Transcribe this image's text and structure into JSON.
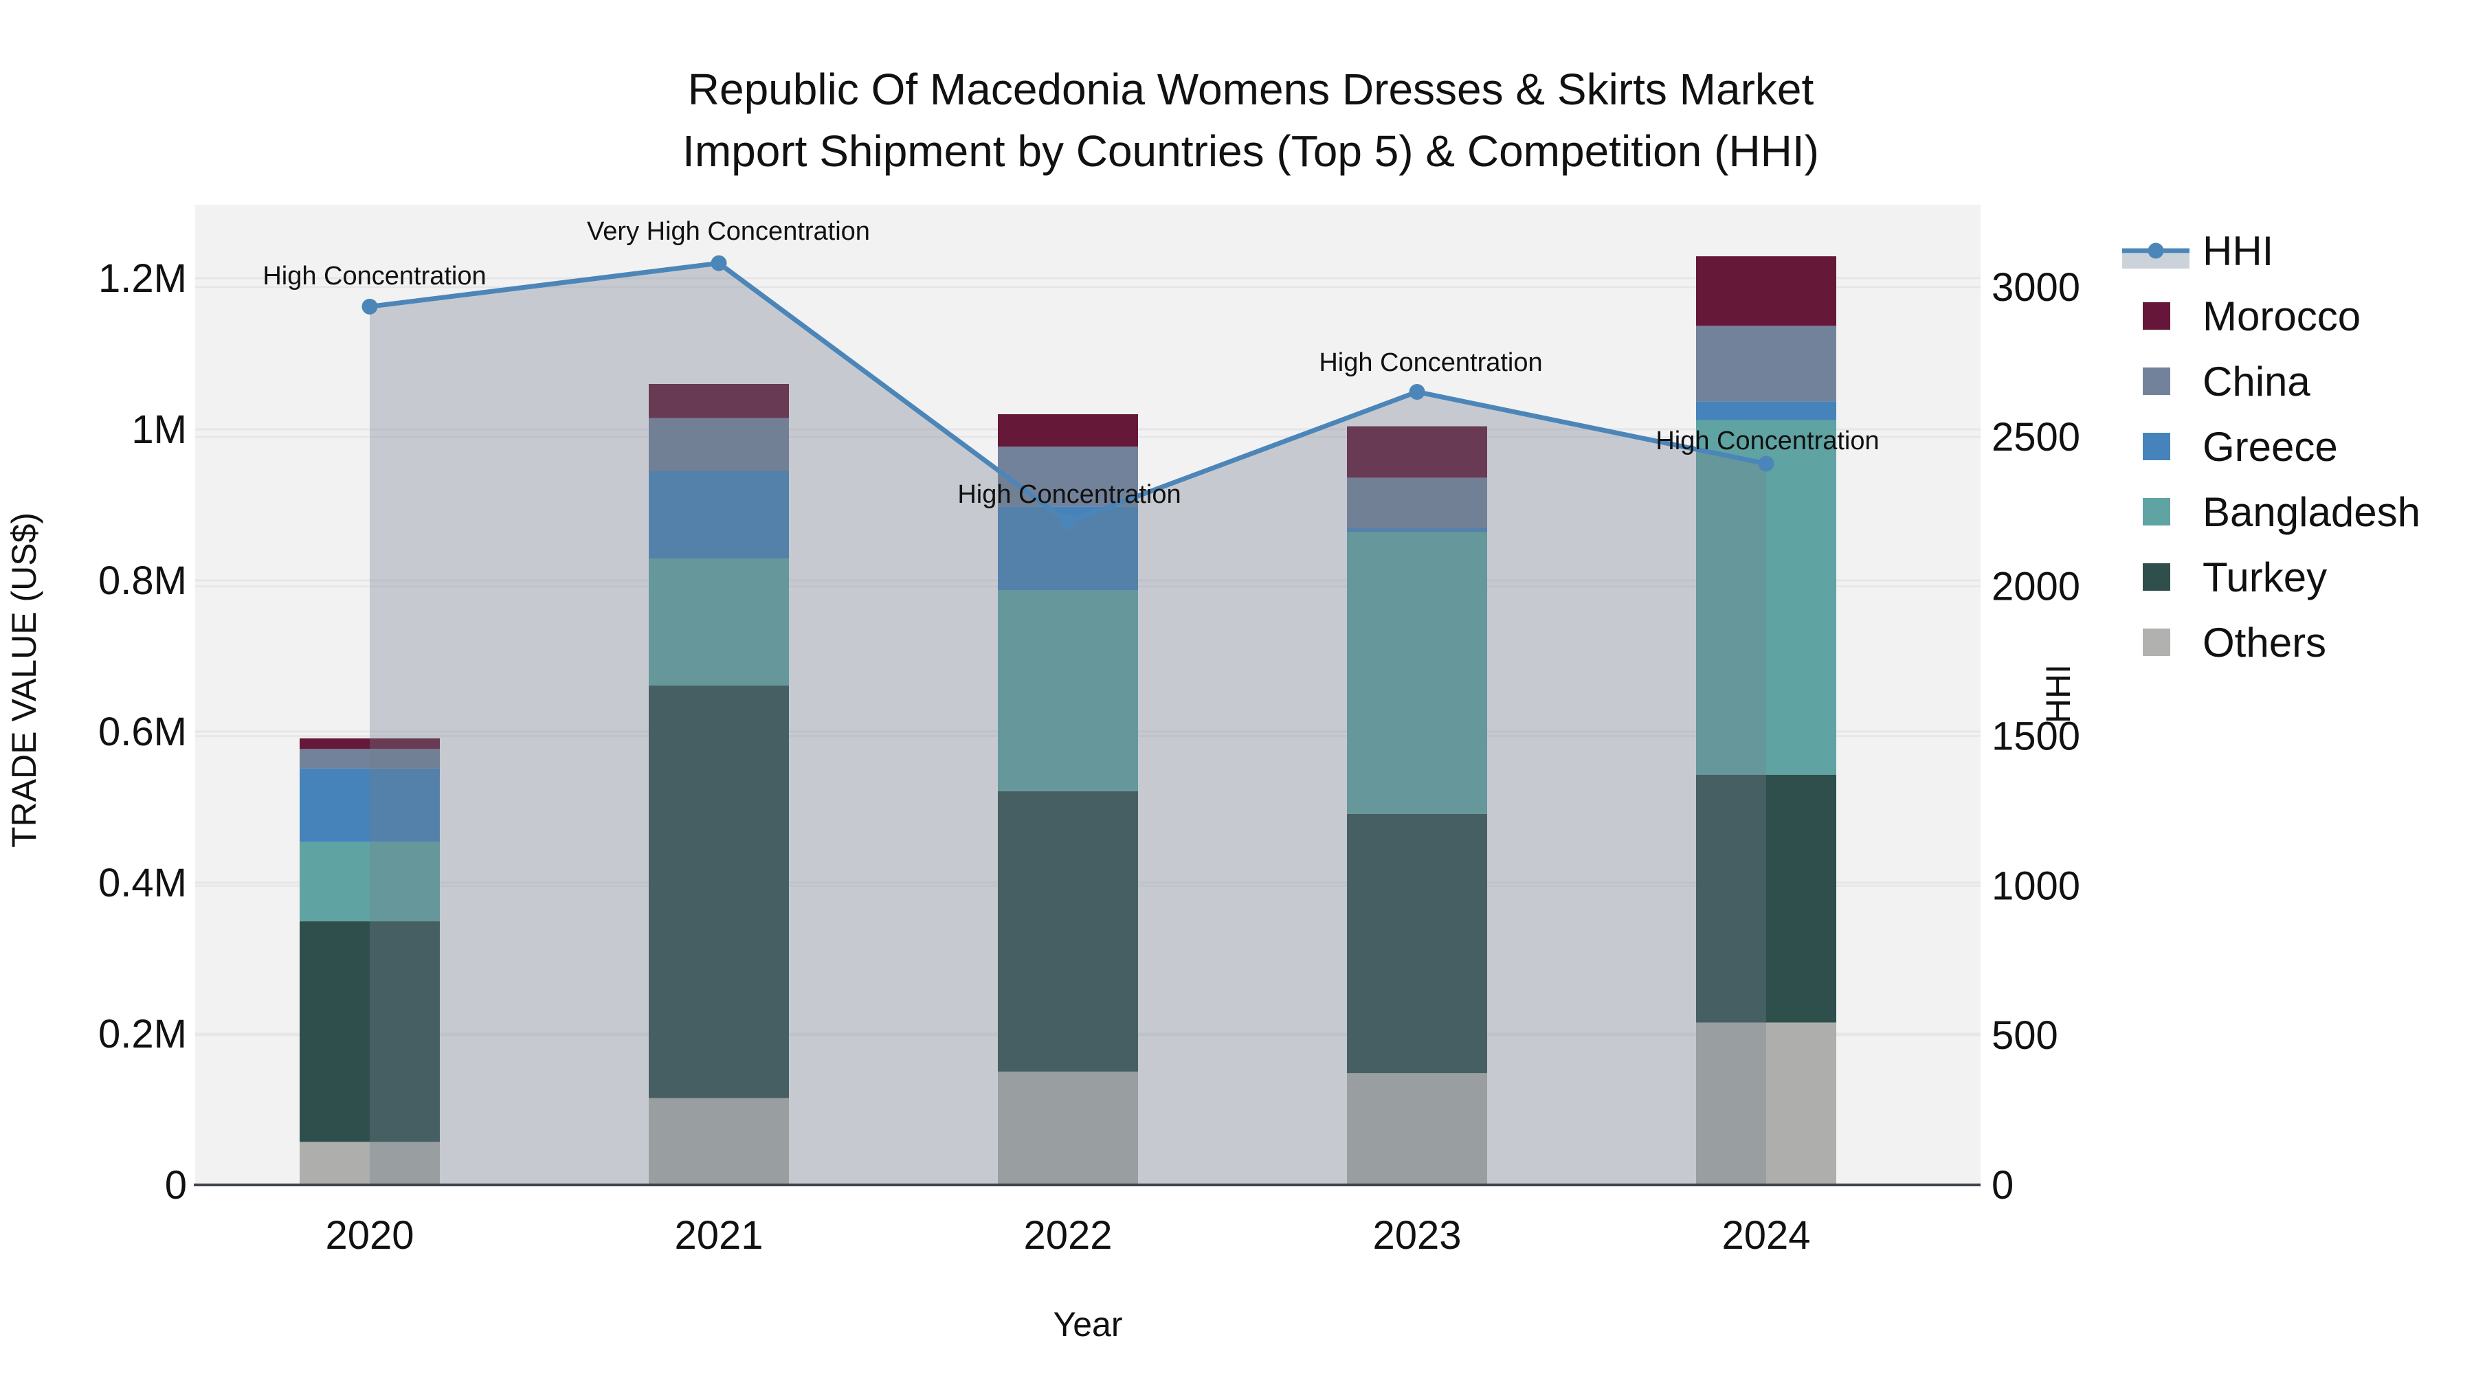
{
  "title": {
    "line1": "Republic Of Macedonia Womens Dresses & Skirts Market",
    "line2": "Import Shipment by Countries (Top 5) & Competition (HHI)"
  },
  "axes": {
    "x": {
      "title": "Year"
    },
    "y_left": {
      "title": "TRADE VALUE (US$)",
      "tick_labels": [
        "0",
        "0.2M",
        "0.4M",
        "0.6M",
        "0.8M",
        "1M",
        "1.2M"
      ],
      "tick_values": [
        0,
        200000,
        400000,
        600000,
        800000,
        1000000,
        1200000
      ],
      "range": [
        0,
        1200000
      ]
    },
    "y_right": {
      "title": "HHI",
      "tick_labels": [
        "0",
        "500",
        "1000",
        "1500",
        "2000",
        "2500",
        "3000"
      ],
      "tick_values": [
        0,
        500,
        1000,
        1500,
        2000,
        2500,
        3000
      ],
      "range": [
        0,
        3000
      ]
    }
  },
  "legend": {
    "items": [
      {
        "label": "HHI",
        "type": "line",
        "color": "#4c86b8"
      },
      {
        "label": "Morocco",
        "type": "swatch",
        "color": "#661739"
      },
      {
        "label": "China",
        "type": "swatch",
        "color": "#72829a"
      },
      {
        "label": "Greece",
        "type": "swatch",
        "color": "#4583ba"
      },
      {
        "label": "Bangladesh",
        "type": "swatch",
        "color": "#5fa4a3"
      },
      {
        "label": "Turkey",
        "type": "swatch",
        "color": "#2f4f4c"
      },
      {
        "label": "Others",
        "type": "swatch",
        "color": "#b1b2af"
      }
    ]
  },
  "colors": {
    "plot_bg": "#f2f2f3",
    "grid": "#e6e6e8",
    "axis_line": "#3f444a",
    "hhi_line": "#4c86b8",
    "hhi_fill": "rgba(114,127,141,0.34)",
    "legend_fill_sample": "#ccd2da",
    "text": "#111111"
  },
  "chart_data": {
    "type": "bar",
    "subtype": "stacked-bars-with-line-overlay",
    "title": "Republic Of Macedonia Womens Dresses & Skirts Market Import Shipment by Countries (Top 5) & Competition (HHI)",
    "xlabel": "Year",
    "ylabel_left": "TRADE VALUE (US$)",
    "ylabel_right": "HHI",
    "ylim_left": [
      0,
      1200000
    ],
    "ylim_right": [
      0,
      3000
    ],
    "grid": true,
    "legend_position": "right",
    "categories": [
      "2020",
      "2021",
      "2022",
      "2023",
      "2024"
    ],
    "series": [
      {
        "name": "Others",
        "color": "#aeafac",
        "values": [
          57000,
          115000,
          150000,
          148000,
          215000
        ]
      },
      {
        "name": "Turkey",
        "color": "#2f4f4c",
        "values": [
          292000,
          546000,
          371000,
          343000,
          328000
        ]
      },
      {
        "name": "Bangladesh",
        "color": "#5fa4a3",
        "values": [
          105000,
          168000,
          266000,
          373000,
          469000
        ]
      },
      {
        "name": "Greece",
        "color": "#4583ba",
        "values": [
          97000,
          116000,
          111000,
          6000,
          25000
        ]
      },
      {
        "name": "China",
        "color": "#72829a",
        "values": [
          26000,
          70000,
          79000,
          66000,
          100000
        ]
      },
      {
        "name": "Morocco",
        "color": "#651838",
        "values": [
          14000,
          45000,
          43000,
          68000,
          92000
        ]
      }
    ],
    "line_series": {
      "name": "HHI",
      "color": "#4c86b8",
      "fill": "tozeroy",
      "fill_color": "rgba(114,127,141,0.34)",
      "values": [
        2935,
        3080,
        2215,
        2650,
        2410
      ]
    },
    "annotations": [
      {
        "category": "2020",
        "label": "High Concentration",
        "x": 545,
        "y": 401
      },
      {
        "category": "2021",
        "label": "Very High Concentration",
        "x": 1060,
        "y": 336
      },
      {
        "category": "2022",
        "label": "High Concentration",
        "x": 1556,
        "y": 719
      },
      {
        "category": "2023",
        "label": "High Concentration",
        "x": 2082,
        "y": 527
      },
      {
        "category": "2024",
        "label": "High Concentration",
        "x": 2572,
        "y": 641
      }
    ]
  }
}
